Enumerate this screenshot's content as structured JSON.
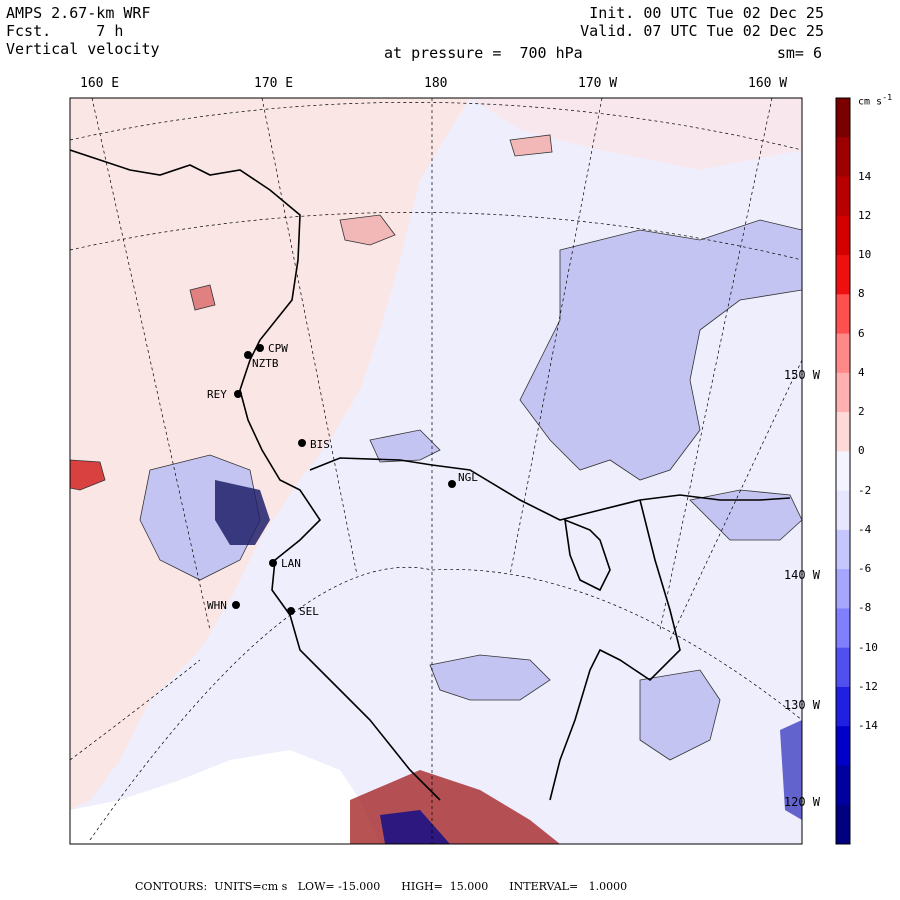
{
  "header": {
    "model": "AMPS 2.67-km WRF",
    "forecast": "Fcst.     7 h",
    "variable": "Vertical velocity",
    "init": "Init. 00 UTC Tue 02 Dec 25",
    "valid": "Valid. 07 UTC Tue 02 Dec 25",
    "pressure": "at pressure =  700 hPa",
    "smoothing": "sm= 6"
  },
  "longitude_labels": [
    "160 E",
    "170 E",
    "180",
    "170 W",
    "160 W"
  ],
  "latitude_labels": [
    "150 W",
    "140 W",
    "130 W",
    "120 W"
  ],
  "stations": [
    {
      "id": "CPW"
    },
    {
      "id": "NZTB"
    },
    {
      "id": "REY"
    },
    {
      "id": "BIS"
    },
    {
      "id": "NGL"
    },
    {
      "id": "LAN"
    },
    {
      "id": "WHN"
    },
    {
      "id": "SEL"
    }
  ],
  "colorbar": {
    "units": "cm s",
    "units_exp": "-1",
    "labels": [
      "14",
      "12",
      "10",
      "8",
      "6",
      "4",
      "2",
      "0",
      "-2",
      "-4",
      "-6",
      "-8",
      "-10",
      "-12",
      "-14"
    ],
    "colors": [
      "#7a0000",
      "#9c0000",
      "#b80000",
      "#d40000",
      "#ee1010",
      "#ff5050",
      "#ff8888",
      "#ffb0b0",
      "#ffd8d8",
      "#f4f4ff",
      "#e6e6ff",
      "#c6c6ff",
      "#a6a6ff",
      "#8080ff",
      "#5050f0",
      "#2020e0",
      "#0000c8",
      "#0000a0",
      "#000080"
    ]
  },
  "footer": "CONTOURS:  UNITS=cm s   LOW= -15.000      HIGH=  15.000      INTERVAL=   1.0000",
  "colors": {
    "updraft_weak": "#fbe6e6",
    "downdraft_weak": "#e8e8fb",
    "downdraft_med": "#c4c4f2",
    "updraft_med": "#f2b8b8"
  }
}
